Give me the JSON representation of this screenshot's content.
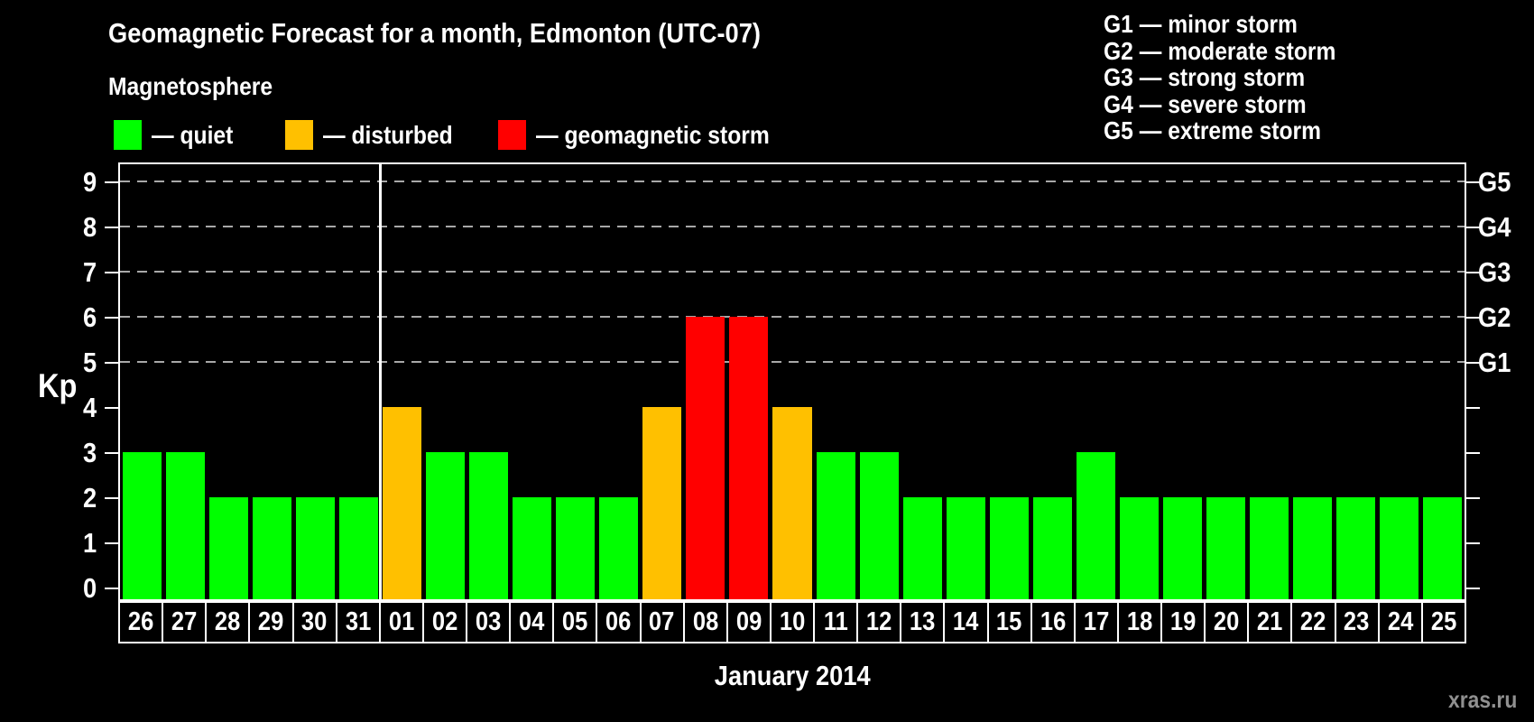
{
  "page": {
    "watermark": "xras.ru"
  },
  "chart_data": {
    "type": "bar",
    "title": "Geomagnetic Forecast for a month, Edmonton (UTC-07)",
    "legend": {
      "heading": "Magnetosphere",
      "items": [
        {
          "key": "quiet",
          "color": "#00ff00",
          "label": "— quiet"
        },
        {
          "key": "disturbed",
          "color": "#ffc000",
          "label": "— disturbed"
        },
        {
          "key": "storm",
          "color": "#ff0000",
          "label": "— geomagnetic storm"
        }
      ]
    },
    "storm_scale_legend": [
      {
        "text": "G1 — minor storm"
      },
      {
        "text": "G2 — moderate storm"
      },
      {
        "text": "G3 — strong storm"
      },
      {
        "text": "G4 — severe storm"
      },
      {
        "text": "G5 — extreme storm"
      }
    ],
    "y_axis": {
      "label": "Kp",
      "ticks": [
        0,
        1,
        2,
        3,
        4,
        5,
        6,
        7,
        8,
        9
      ],
      "range_min": 0,
      "range_max": 9
    },
    "right_axis": {
      "labels": [
        {
          "text": "G1",
          "kp": 5
        },
        {
          "text": "G2",
          "kp": 6
        },
        {
          "text": "G3",
          "kp": 7
        },
        {
          "text": "G4",
          "kp": 8
        },
        {
          "text": "G5",
          "kp": 9
        }
      ]
    },
    "gridlines_at_kp": [
      5,
      6,
      7,
      8,
      9
    ],
    "x_axis": {
      "label": "January 2014"
    },
    "month_separator_after_index": 5,
    "status_colors": {
      "quiet": "#00ff00",
      "disturbed": "#ffc000",
      "storm": "#ff0000"
    },
    "bars": [
      {
        "day": "26",
        "kp": 3,
        "status": "quiet"
      },
      {
        "day": "27",
        "kp": 3,
        "status": "quiet"
      },
      {
        "day": "28",
        "kp": 2,
        "status": "quiet"
      },
      {
        "day": "29",
        "kp": 2,
        "status": "quiet"
      },
      {
        "day": "30",
        "kp": 2,
        "status": "quiet"
      },
      {
        "day": "31",
        "kp": 2,
        "status": "quiet"
      },
      {
        "day": "01",
        "kp": 4,
        "status": "disturbed"
      },
      {
        "day": "02",
        "kp": 3,
        "status": "quiet"
      },
      {
        "day": "03",
        "kp": 3,
        "status": "quiet"
      },
      {
        "day": "04",
        "kp": 2,
        "status": "quiet"
      },
      {
        "day": "05",
        "kp": 2,
        "status": "quiet"
      },
      {
        "day": "06",
        "kp": 2,
        "status": "quiet"
      },
      {
        "day": "07",
        "kp": 4,
        "status": "disturbed"
      },
      {
        "day": "08",
        "kp": 6,
        "status": "storm"
      },
      {
        "day": "09",
        "kp": 6,
        "status": "storm"
      },
      {
        "day": "10",
        "kp": 4,
        "status": "disturbed"
      },
      {
        "day": "11",
        "kp": 3,
        "status": "quiet"
      },
      {
        "day": "12",
        "kp": 3,
        "status": "quiet"
      },
      {
        "day": "13",
        "kp": 2,
        "status": "quiet"
      },
      {
        "day": "14",
        "kp": 2,
        "status": "quiet"
      },
      {
        "day": "15",
        "kp": 2,
        "status": "quiet"
      },
      {
        "day": "16",
        "kp": 2,
        "status": "quiet"
      },
      {
        "day": "17",
        "kp": 3,
        "status": "quiet"
      },
      {
        "day": "18",
        "kp": 2,
        "status": "quiet"
      },
      {
        "day": "19",
        "kp": 2,
        "status": "quiet"
      },
      {
        "day": "20",
        "kp": 2,
        "status": "quiet"
      },
      {
        "day": "21",
        "kp": 2,
        "status": "quiet"
      },
      {
        "day": "22",
        "kp": 2,
        "status": "quiet"
      },
      {
        "day": "23",
        "kp": 2,
        "status": "quiet"
      },
      {
        "day": "24",
        "kp": 2,
        "status": "quiet"
      },
      {
        "day": "25",
        "kp": 2,
        "status": "quiet"
      }
    ]
  }
}
